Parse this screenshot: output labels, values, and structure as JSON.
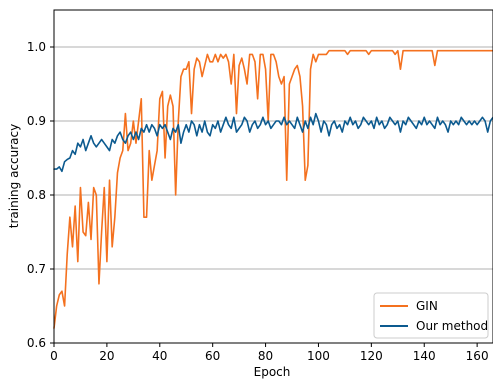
{
  "chart_data": {
    "type": "line",
    "xlabel": "Epoch",
    "ylabel": "training accuracy",
    "xlim": [
      0,
      166
    ],
    "ylim": [
      0.6,
      1.05
    ],
    "x_ticks": [
      0,
      20,
      40,
      60,
      80,
      100,
      120,
      140,
      160
    ],
    "y_ticks": [
      0.6,
      0.7,
      0.8,
      0.9,
      1.0
    ],
    "y_tick_labels": [
      "0.6",
      "0.7",
      "0.8",
      "0.9",
      "1.0"
    ],
    "grid": "horizontal",
    "legend_position": "lower-right",
    "series": [
      {
        "name": "GIN",
        "color": "#f4711f",
        "values": [
          0.62,
          0.65,
          0.665,
          0.67,
          0.65,
          0.72,
          0.77,
          0.73,
          0.785,
          0.71,
          0.81,
          0.75,
          0.745,
          0.79,
          0.74,
          0.81,
          0.8,
          0.68,
          0.75,
          0.81,
          0.71,
          0.82,
          0.73,
          0.77,
          0.83,
          0.85,
          0.86,
          0.91,
          0.86,
          0.87,
          0.9,
          0.87,
          0.9,
          0.93,
          0.77,
          0.77,
          0.86,
          0.82,
          0.84,
          0.86,
          0.93,
          0.94,
          0.85,
          0.92,
          0.935,
          0.92,
          0.8,
          0.9,
          0.96,
          0.97,
          0.97,
          0.98,
          0.91,
          0.97,
          0.985,
          0.98,
          0.96,
          0.975,
          0.99,
          0.98,
          0.98,
          0.99,
          0.98,
          0.99,
          0.985,
          0.99,
          0.98,
          0.95,
          0.99,
          0.91,
          0.975,
          0.985,
          0.97,
          0.95,
          0.99,
          0.99,
          0.98,
          0.93,
          0.99,
          0.99,
          0.97,
          0.9,
          0.99,
          0.99,
          0.98,
          0.96,
          0.95,
          0.96,
          0.82,
          0.95,
          0.96,
          0.97,
          0.975,
          0.96,
          0.92,
          0.82,
          0.84,
          0.97,
          0.99,
          0.98,
          0.99,
          0.99,
          0.99,
          0.99,
          0.995,
          0.995,
          0.995,
          0.995,
          0.995,
          0.995,
          0.995,
          0.99,
          0.995,
          0.995,
          0.995,
          0.995,
          0.995,
          0.995,
          0.995,
          0.99,
          0.995,
          0.995,
          0.995,
          0.995,
          0.995,
          0.995,
          0.995,
          0.995,
          0.995,
          0.99,
          0.995,
          0.97,
          0.995,
          0.995,
          0.995,
          0.995,
          0.995,
          0.995,
          0.995,
          0.995,
          0.995,
          0.995,
          0.995,
          0.995,
          0.975,
          0.995,
          0.995,
          0.995,
          0.995,
          0.995,
          0.995,
          0.995,
          0.995,
          0.995,
          0.995,
          0.995,
          0.995,
          0.995,
          0.995,
          0.995,
          0.995,
          0.995,
          0.995,
          0.995,
          0.995,
          0.995,
          0.995,
          0.995,
          0.995,
          0.995
        ]
      },
      {
        "name": "Our method",
        "color": "#0c5a8f",
        "values": [
          0.835,
          0.835,
          0.838,
          0.832,
          0.845,
          0.848,
          0.85,
          0.86,
          0.855,
          0.87,
          0.865,
          0.875,
          0.86,
          0.87,
          0.88,
          0.87,
          0.865,
          0.87,
          0.875,
          0.87,
          0.865,
          0.86,
          0.875,
          0.87,
          0.88,
          0.885,
          0.875,
          0.87,
          0.88,
          0.885,
          0.875,
          0.885,
          0.875,
          0.89,
          0.885,
          0.895,
          0.885,
          0.895,
          0.89,
          0.88,
          0.895,
          0.89,
          0.895,
          0.885,
          0.875,
          0.89,
          0.885,
          0.895,
          0.87,
          0.885,
          0.895,
          0.885,
          0.9,
          0.895,
          0.88,
          0.895,
          0.885,
          0.9,
          0.885,
          0.88,
          0.895,
          0.89,
          0.9,
          0.885,
          0.895,
          0.905,
          0.895,
          0.89,
          0.905,
          0.885,
          0.89,
          0.895,
          0.905,
          0.9,
          0.885,
          0.895,
          0.9,
          0.89,
          0.895,
          0.905,
          0.895,
          0.9,
          0.89,
          0.895,
          0.9,
          0.9,
          0.895,
          0.905,
          0.895,
          0.9,
          0.895,
          0.89,
          0.905,
          0.895,
          0.885,
          0.9,
          0.89,
          0.905,
          0.895,
          0.91,
          0.9,
          0.885,
          0.9,
          0.895,
          0.88,
          0.895,
          0.9,
          0.89,
          0.895,
          0.885,
          0.9,
          0.895,
          0.905,
          0.895,
          0.9,
          0.89,
          0.895,
          0.905,
          0.9,
          0.895,
          0.9,
          0.89,
          0.905,
          0.895,
          0.9,
          0.89,
          0.895,
          0.905,
          0.9,
          0.895,
          0.9,
          0.885,
          0.9,
          0.895,
          0.905,
          0.9,
          0.895,
          0.89,
          0.9,
          0.895,
          0.905,
          0.895,
          0.9,
          0.895,
          0.89,
          0.905,
          0.895,
          0.9,
          0.895,
          0.885,
          0.9,
          0.895,
          0.9,
          0.895,
          0.905,
          0.9,
          0.895,
          0.9,
          0.895,
          0.9,
          0.895,
          0.9,
          0.905,
          0.9,
          0.885,
          0.9,
          0.905
        ]
      }
    ]
  }
}
